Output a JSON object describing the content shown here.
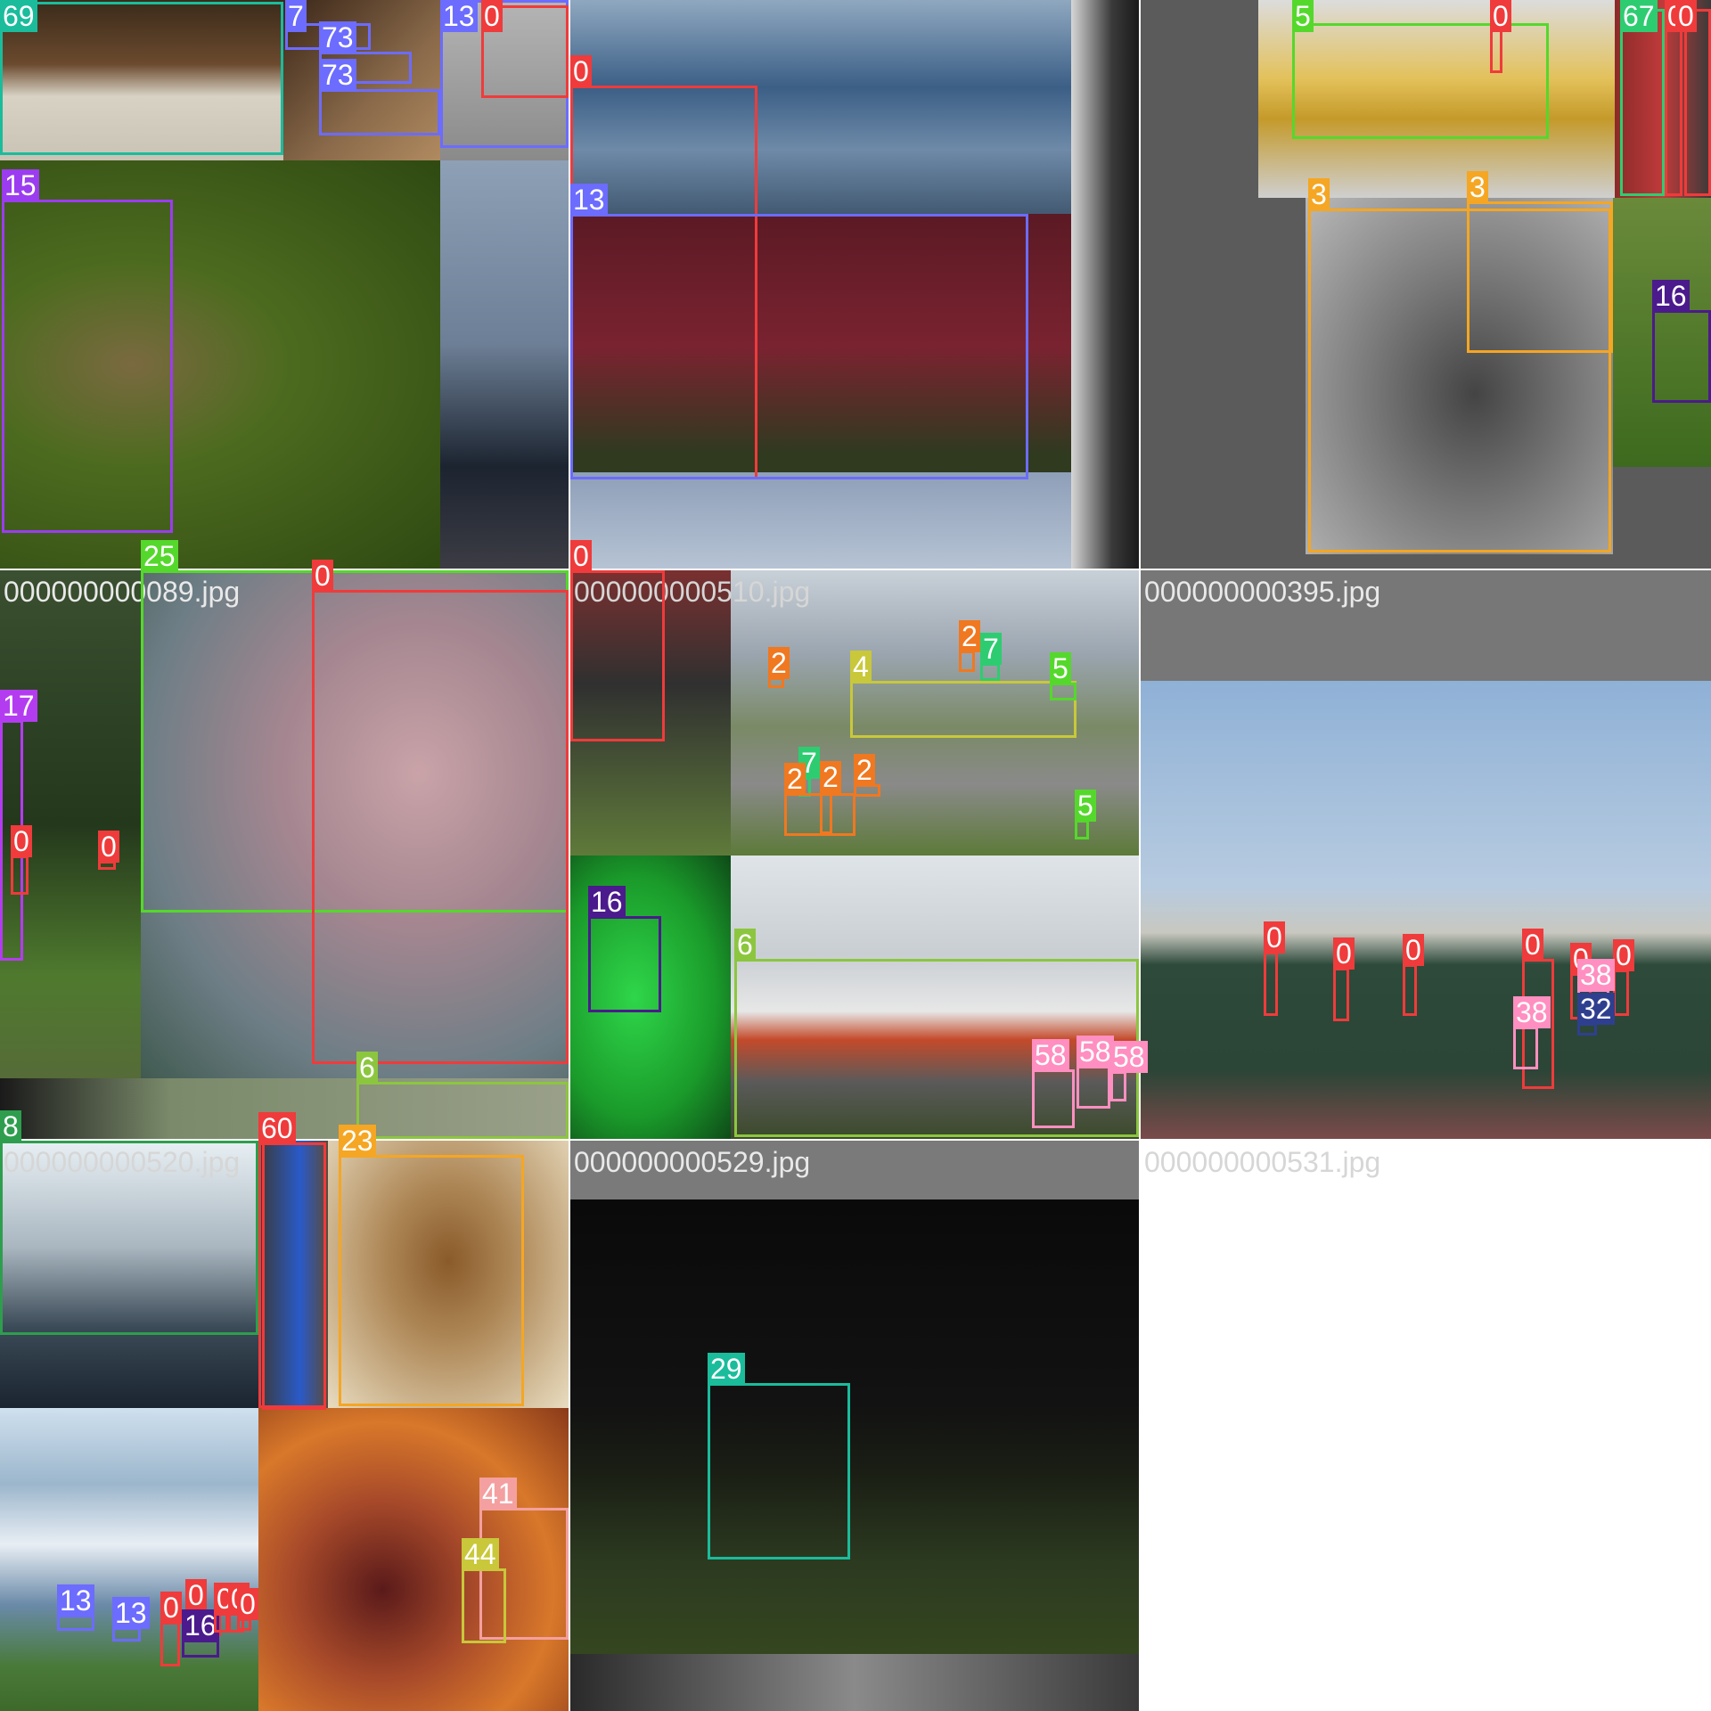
{
  "tiles": [
    {
      "title": ""
    },
    {
      "title": ""
    },
    {
      "title": ""
    },
    {
      "title": "000000000089.jpg"
    },
    {
      "title": "000000000510.jpg"
    },
    {
      "title": "000000000395.jpg"
    },
    {
      "title": "000000000520.jpg"
    },
    {
      "title": "000000000529.jpg"
    },
    {
      "title": "000000000531.jpg"
    }
  ],
  "detections": [
    {
      "label": "69",
      "color": "#1abc9c"
    },
    {
      "label": "7",
      "color": "#6c6cff"
    },
    {
      "label": "73",
      "color": "#6c6cff"
    },
    {
      "label": "73",
      "color": "#6c6cff"
    },
    {
      "label": "13",
      "color": "#6c6cff"
    },
    {
      "label": "0",
      "color": "#ef3b3b"
    },
    {
      "label": "15",
      "color": "#9b3cf0"
    },
    {
      "label": "0",
      "color": "#ef3b3b"
    },
    {
      "label": "13",
      "color": "#6c6cff"
    },
    {
      "label": "5",
      "color": "#55d82c"
    },
    {
      "label": "0",
      "color": "#ef3b3b"
    },
    {
      "label": "67",
      "color": "#2ecc71"
    },
    {
      "label": "0",
      "color": "#ef3b3b"
    },
    {
      "label": "0",
      "color": "#ef3b3b"
    },
    {
      "label": "3",
      "color": "#f5a623"
    },
    {
      "label": "3",
      "color": "#f5a623"
    },
    {
      "label": "16",
      "color": "#4b1a8c"
    },
    {
      "label": "25",
      "color": "#55d82c"
    },
    {
      "label": "0",
      "color": "#ef3b3b"
    },
    {
      "label": "17",
      "color": "#b43cf0"
    },
    {
      "label": "0",
      "color": "#ef3b3b"
    },
    {
      "label": "0",
      "color": "#ef3b3b"
    },
    {
      "label": "6",
      "color": "#8cc63f"
    },
    {
      "label": "0",
      "color": "#ef3b3b"
    },
    {
      "label": "2",
      "color": "#f07820"
    },
    {
      "label": "4",
      "color": "#c8c83a"
    },
    {
      "label": "2",
      "color": "#f07820"
    },
    {
      "label": "7",
      "color": "#2ecc71"
    },
    {
      "label": "5",
      "color": "#55d82c"
    },
    {
      "label": "7",
      "color": "#2ecc71"
    },
    {
      "label": "2",
      "color": "#f07820"
    },
    {
      "label": "2",
      "color": "#f07820"
    },
    {
      "label": "2",
      "color": "#f07820"
    },
    {
      "label": "5",
      "color": "#55d82c"
    },
    {
      "label": "16",
      "color": "#4b1a8c"
    },
    {
      "label": "6",
      "color": "#8cc63f"
    },
    {
      "label": "58",
      "color": "#ff8fc0"
    },
    {
      "label": "58",
      "color": "#ff8fc0"
    },
    {
      "label": "58",
      "color": "#ff8fc0"
    },
    {
      "label": "0",
      "color": "#ef3b3b"
    },
    {
      "label": "0",
      "color": "#ef3b3b"
    },
    {
      "label": "0",
      "color": "#ef3b3b"
    },
    {
      "label": "0",
      "color": "#ef3b3b"
    },
    {
      "label": "0",
      "color": "#ef3b3b"
    },
    {
      "label": "0",
      "color": "#ef3b3b"
    },
    {
      "label": "38",
      "color": "#ff8fc0"
    },
    {
      "label": "38",
      "color": "#ff8fc0"
    },
    {
      "label": "32",
      "color": "#2f3f8f"
    },
    {
      "label": "8",
      "color": "#2e9e4e"
    },
    {
      "label": "0",
      "color": "#ef3b3b"
    },
    {
      "label": "23",
      "color": "#f5a623"
    },
    {
      "label": "60",
      "color": "#ef3b3b"
    },
    {
      "label": "41",
      "color": "#f4a0a0"
    },
    {
      "label": "44",
      "color": "#c8c83a"
    },
    {
      "label": "13",
      "color": "#6c6cff"
    },
    {
      "label": "13",
      "color": "#6c6cff"
    },
    {
      "label": "0",
      "color": "#ef3b3b"
    },
    {
      "label": "0",
      "color": "#ef3b3b"
    },
    {
      "label": "16",
      "color": "#4b1a8c"
    },
    {
      "label": "0",
      "color": "#ef3b3b"
    },
    {
      "label": "0",
      "color": "#ef3b3b"
    },
    {
      "label": "0",
      "color": "#ef3b3b"
    },
    {
      "label": "29",
      "color": "#1abc9c"
    }
  ]
}
